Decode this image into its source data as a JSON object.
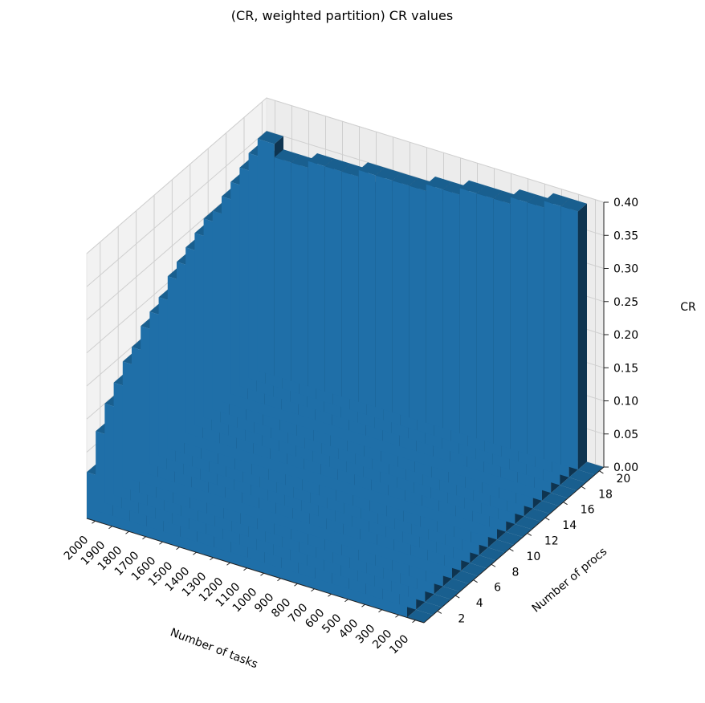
{
  "chart_data": {
    "type": "bar3d",
    "title": "(CR, weighted partition) CR values",
    "xlabel": "Number of tasks",
    "ylabel": "Number of procs",
    "zlabel": "CR",
    "x_ticks": [
      "100",
      "200",
      "300",
      "400",
      "500",
      "600",
      "700",
      "800",
      "900",
      "1000",
      "1100",
      "1200",
      "1300",
      "1400",
      "1500",
      "1600",
      "1700",
      "1800",
      "1900",
      "2000"
    ],
    "y_ticks": [
      "2",
      "4",
      "6",
      "8",
      "10",
      "12",
      "14",
      "16",
      "18",
      "20"
    ],
    "z_ticks": [
      "0.00",
      "0.05",
      "0.10",
      "0.15",
      "0.20",
      "0.25",
      "0.30",
      "0.35",
      "0.40"
    ],
    "zlim": [
      0,
      0.4
    ],
    "grid": true,
    "bar_color": "#1f6fa8",
    "tasks": [
      100,
      200,
      300,
      400,
      500,
      600,
      700,
      800,
      900,
      1000,
      1100,
      1200,
      1300,
      1400,
      1500,
      1600,
      1700,
      1800,
      1900,
      2000
    ],
    "procs": [
      1,
      2,
      3,
      4,
      5,
      6,
      7,
      8,
      9,
      10,
      11,
      12,
      13,
      14,
      15,
      16,
      17,
      18,
      19,
      20
    ],
    "values": [
      [
        0.0,
        0.12,
        0.12,
        0.12,
        0.11,
        0.11,
        0.11,
        0.1,
        0.1,
        0.1,
        0.09,
        0.09,
        0.09,
        0.09,
        0.08,
        0.08,
        0.08,
        0.07,
        0.07,
        0.07
      ],
      [
        0.0,
        0.17,
        0.16,
        0.17,
        0.16,
        0.16,
        0.15,
        0.15,
        0.15,
        0.15,
        0.14,
        0.14,
        0.13,
        0.14,
        0.13,
        0.13,
        0.13,
        0.12,
        0.12,
        0.12
      ],
      [
        0.0,
        0.21,
        0.2,
        0.19,
        0.19,
        0.2,
        0.18,
        0.18,
        0.18,
        0.17,
        0.18,
        0.17,
        0.16,
        0.17,
        0.16,
        0.16,
        0.15,
        0.16,
        0.15,
        0.15
      ],
      [
        0.0,
        0.24,
        0.22,
        0.23,
        0.21,
        0.22,
        0.21,
        0.2,
        0.21,
        0.2,
        0.2,
        0.19,
        0.19,
        0.19,
        0.18,
        0.18,
        0.18,
        0.17,
        0.18,
        0.17
      ],
      [
        0.0,
        0.26,
        0.25,
        0.24,
        0.24,
        0.23,
        0.23,
        0.23,
        0.22,
        0.22,
        0.21,
        0.22,
        0.21,
        0.21,
        0.2,
        0.2,
        0.2,
        0.19,
        0.19,
        0.19
      ],
      [
        0.0,
        0.28,
        0.27,
        0.26,
        0.26,
        0.25,
        0.25,
        0.24,
        0.24,
        0.23,
        0.24,
        0.23,
        0.23,
        0.22,
        0.22,
        0.22,
        0.21,
        0.21,
        0.21,
        0.2
      ],
      [
        0.0,
        0.3,
        0.29,
        0.28,
        0.27,
        0.27,
        0.26,
        0.26,
        0.25,
        0.25,
        0.25,
        0.24,
        0.24,
        0.24,
        0.23,
        0.23,
        0.23,
        0.22,
        0.22,
        0.22
      ],
      [
        0.0,
        0.32,
        0.3,
        0.3,
        0.29,
        0.28,
        0.28,
        0.27,
        0.27,
        0.26,
        0.26,
        0.26,
        0.25,
        0.25,
        0.25,
        0.24,
        0.24,
        0.24,
        0.23,
        0.23
      ],
      [
        0.0,
        0.33,
        0.32,
        0.31,
        0.3,
        0.3,
        0.29,
        0.28,
        0.28,
        0.28,
        0.27,
        0.27,
        0.26,
        0.26,
        0.26,
        0.26,
        0.25,
        0.25,
        0.25,
        0.24
      ],
      [
        0.0,
        0.34,
        0.33,
        0.32,
        0.31,
        0.31,
        0.3,
        0.3,
        0.29,
        0.29,
        0.28,
        0.28,
        0.28,
        0.27,
        0.27,
        0.27,
        0.26,
        0.26,
        0.26,
        0.26
      ],
      [
        0.0,
        0.35,
        0.34,
        0.33,
        0.33,
        0.32,
        0.31,
        0.31,
        0.3,
        0.3,
        0.29,
        0.29,
        0.29,
        0.28,
        0.28,
        0.28,
        0.27,
        0.27,
        0.27,
        0.27
      ],
      [
        0.0,
        0.36,
        0.35,
        0.34,
        0.33,
        0.33,
        0.32,
        0.32,
        0.31,
        0.31,
        0.3,
        0.3,
        0.3,
        0.29,
        0.29,
        0.29,
        0.28,
        0.28,
        0.28,
        0.28
      ],
      [
        0.0,
        0.36,
        0.36,
        0.35,
        0.34,
        0.34,
        0.33,
        0.33,
        0.32,
        0.32,
        0.31,
        0.31,
        0.31,
        0.3,
        0.3,
        0.3,
        0.29,
        0.29,
        0.29,
        0.29
      ],
      [
        0.0,
        0.37,
        0.36,
        0.36,
        0.35,
        0.35,
        0.34,
        0.34,
        0.33,
        0.33,
        0.32,
        0.32,
        0.32,
        0.31,
        0.31,
        0.31,
        0.3,
        0.3,
        0.3,
        0.3
      ],
      [
        0.0,
        0.37,
        0.37,
        0.36,
        0.36,
        0.35,
        0.35,
        0.34,
        0.34,
        0.33,
        0.33,
        0.33,
        0.32,
        0.32,
        0.32,
        0.31,
        0.31,
        0.31,
        0.31,
        0.3
      ],
      [
        0.0,
        0.38,
        0.37,
        0.37,
        0.36,
        0.36,
        0.35,
        0.35,
        0.34,
        0.34,
        0.34,
        0.33,
        0.33,
        0.33,
        0.32,
        0.32,
        0.32,
        0.31,
        0.31,
        0.31
      ],
      [
        0.0,
        0.38,
        0.38,
        0.37,
        0.37,
        0.36,
        0.36,
        0.35,
        0.35,
        0.35,
        0.34,
        0.34,
        0.34,
        0.33,
        0.33,
        0.33,
        0.32,
        0.32,
        0.32,
        0.32
      ],
      [
        0.0,
        0.38,
        0.38,
        0.38,
        0.37,
        0.37,
        0.36,
        0.36,
        0.35,
        0.35,
        0.35,
        0.34,
        0.34,
        0.34,
        0.33,
        0.33,
        0.33,
        0.33,
        0.32,
        0.33
      ],
      [
        0.0,
        0.39,
        0.38,
        0.38,
        0.37,
        0.37,
        0.37,
        0.36,
        0.36,
        0.35,
        0.35,
        0.35,
        0.34,
        0.34,
        0.34,
        0.34,
        0.33,
        0.33,
        0.33,
        0.34
      ],
      [
        0.0,
        0.39,
        0.39,
        0.38,
        0.38,
        0.37,
        0.37,
        0.37,
        0.36,
        0.36,
        0.35,
        0.35,
        0.35,
        0.35,
        0.34,
        0.34,
        0.34,
        0.33,
        0.33,
        0.35
      ]
    ]
  }
}
